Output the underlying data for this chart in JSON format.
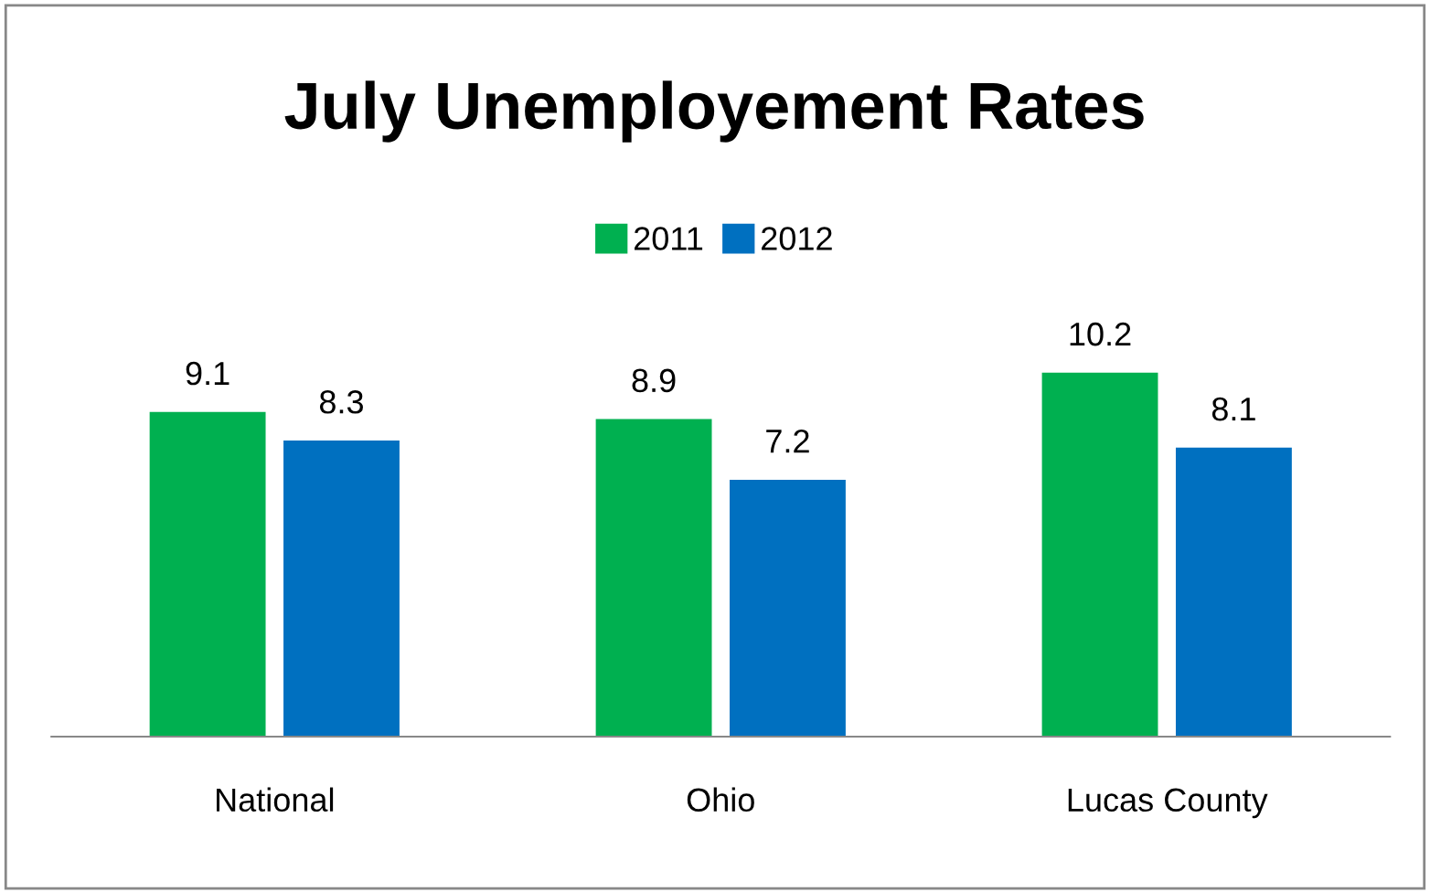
{
  "chart_data": {
    "type": "bar",
    "title": "July Unemployement Rates",
    "categories": [
      "National",
      "Ohio",
      "Lucas County"
    ],
    "series": [
      {
        "name": "2011",
        "color": "#00b050",
        "values": [
          9.1,
          8.9,
          10.2
        ]
      },
      {
        "name": "2012",
        "color": "#0070c0",
        "values": [
          8.3,
          7.2,
          8.1
        ]
      }
    ],
    "data_labels": true,
    "legend": "top",
    "grid": false
  }
}
